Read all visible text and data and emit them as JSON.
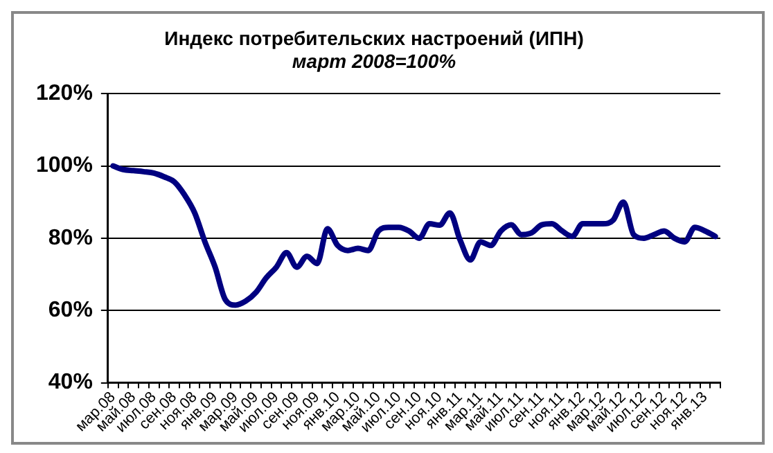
{
  "chart_data": {
    "type": "line",
    "title": "Индекс потребительских настроений (ИПН)",
    "subtitle": "март 2008=100%",
    "categories": [
      "мар.08",
      null,
      "май.08",
      null,
      "июл.08",
      null,
      "сен.08",
      null,
      "ноя.08",
      null,
      "янв.09",
      null,
      "мар.09",
      null,
      "май.09",
      null,
      "июл.09",
      null,
      "сен.09",
      null,
      "ноя.09",
      null,
      "янв.10",
      null,
      "мар.10",
      null,
      "май.10",
      null,
      "июл.10",
      null,
      "сен.10",
      null,
      "ноя.10",
      null,
      "янв.11",
      null,
      "мар.11",
      null,
      "май.11",
      null,
      "июл.11",
      null,
      "сен.11",
      null,
      "ноя.11",
      null,
      "янв.12",
      null,
      "мар.12",
      null,
      "май.12",
      null,
      "июл.12",
      null,
      "сен.12",
      null,
      "ноя.12",
      null,
      "янв.13",
      null
    ],
    "series": [
      {
        "color": "#000080",
        "values": [
          100,
          99,
          98.7,
          98.4,
          98,
          97,
          95.6,
          92,
          87,
          79,
          72,
          63,
          61.5,
          62.6,
          65,
          69,
          72,
          76,
          72,
          75,
          73,
          82.6,
          78,
          76.6,
          77.2,
          76.6,
          82,
          83,
          83,
          82,
          80,
          84,
          83.6,
          87,
          79.5,
          74,
          79,
          78,
          82,
          83.7,
          81,
          81.5,
          83.7,
          84,
          82,
          80.5,
          84,
          84,
          84,
          85,
          90,
          81,
          80,
          81,
          82,
          80,
          79,
          83,
          82,
          80.5
        ]
      }
    ],
    "ylim": [
      40,
      120
    ],
    "yticks": [
      {
        "value": 40,
        "label": "40%"
      },
      {
        "value": 60,
        "label": "60%"
      },
      {
        "value": 80,
        "label": "80%"
      },
      {
        "value": 100,
        "label": "100%"
      },
      {
        "value": 120,
        "label": "120%"
      }
    ],
    "grid": "y",
    "legend": false,
    "marker": "none",
    "line_style": "solid"
  }
}
